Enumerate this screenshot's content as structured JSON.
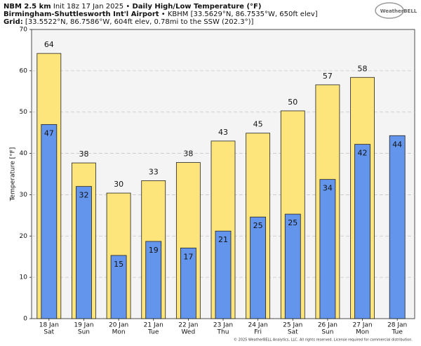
{
  "header": {
    "model": "NBM 2.5 km",
    "init": "Init 18z 17 Jan 2025",
    "separator": "•",
    "product": "Daily High/Low Temperature (°F)",
    "station": "Birmingham-Shuttlesworth Int'l Airport",
    "station_detail": "KBHM [33.5629°N, 86.7535°W, 650ft elev]",
    "grid_label": "Grid:",
    "grid_detail": "[33.5522°N, 86.7586°W, 604ft elev, 0.78mi to the SSW (202.3°)]"
  },
  "logo": "WeatherBELL",
  "footer": "© 2025 WeatherBELL Analytics, LLC. All rights reserved. License required for commercial distribution.",
  "chart_data": {
    "type": "bar",
    "y_label": "Temperature [°F]",
    "categories": [
      "18 Jan",
      "19 Jan",
      "20 Jan",
      "21 Jan",
      "22 Jan",
      "23 Jan",
      "24 Jan",
      "25 Jan",
      "26 Jan",
      "27 Jan",
      "28 Jan"
    ],
    "weekdays": [
      "Sat",
      "Sun",
      "Mon",
      "Tue",
      "Wed",
      "Thu",
      "Fri",
      "Sat",
      "Sun",
      "Mon",
      "Tue"
    ],
    "series": [
      {
        "color": "#fde57b",
        "values": [
          64.2,
          37.7,
          30.4,
          33.4,
          37.8,
          43.0,
          44.9,
          50.3,
          56.6,
          58.4,
          null
        ],
        "value_labels": [
          "64",
          "38",
          "30",
          "33",
          "38",
          "43",
          "45",
          "50",
          "57",
          "58",
          null
        ]
      },
      {
        "color": "#6495ed",
        "values": [
          47.0,
          32.0,
          15.3,
          18.7,
          17.1,
          21.2,
          24.6,
          25.3,
          33.7,
          42.2,
          44.3
        ],
        "value_labels": [
          "47",
          "32",
          "15",
          "19",
          "17",
          "21",
          "25",
          "25",
          "34",
          "42",
          "44"
        ]
      }
    ],
    "ylim": [
      0,
      70
    ],
    "yticks": [
      0,
      10,
      20,
      30,
      40,
      50,
      60,
      70
    ],
    "grid": true
  }
}
